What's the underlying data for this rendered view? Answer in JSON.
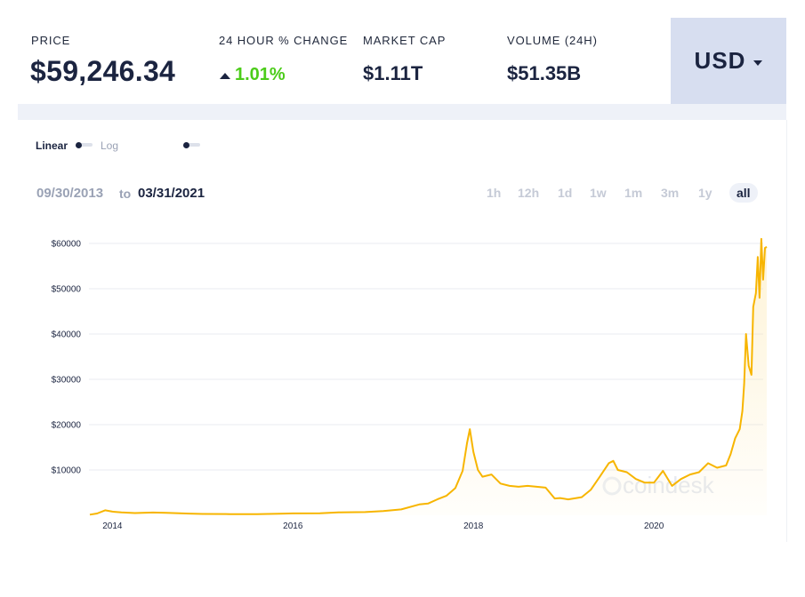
{
  "stats": {
    "price_label": "PRICE",
    "price_value": "$59,246.34",
    "change_label": "24 HOUR % CHANGE",
    "change_value": "1.01%",
    "market_cap_label": "MARKET CAP",
    "market_cap_value": "$1.11T",
    "volume_label": "VOLUME (24H)",
    "volume_value": "$51.35B"
  },
  "currency": {
    "label": "USD"
  },
  "scale": {
    "linear_label": "Linear",
    "log_label": "Log"
  },
  "date_range": {
    "from": "09/30/2013",
    "to_word": "to",
    "to": "03/31/2021"
  },
  "ranges": [
    "1h",
    "12h",
    "1d",
    "1w",
    "1m",
    "3m",
    "1y",
    "all"
  ],
  "active_range": "all",
  "watermark": "coindesk",
  "colors": {
    "line": "#f7b500",
    "positive": "#4ccc1a",
    "text": "#1b2440",
    "muted": "#9aa2b5",
    "currency_bg": "#d7def0"
  },
  "chart_data": {
    "type": "area",
    "xlim": [
      2013.75,
      2021.25
    ],
    "ylim": [
      0,
      62000
    ],
    "x_ticks": [
      2014,
      2016,
      2018,
      2020
    ],
    "x_tick_labels": [
      "2014",
      "2016",
      "2018",
      "2020"
    ],
    "y_ticks": [
      10000,
      20000,
      30000,
      40000,
      50000,
      60000
    ],
    "y_tick_labels": [
      "$10000",
      "$20000",
      "$30000",
      "$40000",
      "$50000",
      "$60000"
    ],
    "grid": true,
    "series": [
      {
        "x": [
          2013.75,
          2013.83,
          2013.92,
          2014.0,
          2014.1,
          2014.25,
          2014.45,
          2014.6,
          2014.85,
          2015.0,
          2015.3,
          2015.6,
          2015.85,
          2016.0,
          2016.3,
          2016.5,
          2016.8,
          2017.0,
          2017.2,
          2017.4,
          2017.5,
          2017.6,
          2017.7,
          2017.8,
          2017.88,
          2017.93,
          2017.96,
          2018.0,
          2018.05,
          2018.1,
          2018.2,
          2018.3,
          2018.4,
          2018.5,
          2018.6,
          2018.7,
          2018.8,
          2018.9,
          2018.96,
          2019.05,
          2019.2,
          2019.3,
          2019.4,
          2019.5,
          2019.55,
          2019.6,
          2019.7,
          2019.8,
          2019.9,
          2020.0,
          2020.1,
          2020.2,
          2020.3,
          2020.4,
          2020.5,
          2020.6,
          2020.7,
          2020.8,
          2020.85,
          2020.9,
          2020.95,
          2020.98,
          2021.0,
          2021.02,
          2021.05,
          2021.08,
          2021.1,
          2021.13,
          2021.15,
          2021.17,
          2021.19,
          2021.21,
          2021.23,
          2021.25
        ],
        "y": [
          130,
          400,
          1100,
          800,
          650,
          500,
          600,
          550,
          380,
          300,
          250,
          230,
          350,
          420,
          430,
          650,
          700,
          950,
          1300,
          2400,
          2600,
          3500,
          4300,
          6000,
          9800,
          16000,
          19000,
          14000,
          10000,
          8500,
          9000,
          7000,
          6500,
          6300,
          6500,
          6300,
          6100,
          3700,
          3800,
          3500,
          4000,
          5600,
          8500,
          11500,
          12000,
          10000,
          9500,
          8000,
          7200,
          7200,
          9800,
          6500,
          8000,
          9000,
          9500,
          11500,
          10500,
          11000,
          13500,
          17000,
          19000,
          23000,
          29000,
          40000,
          33000,
          31000,
          46000,
          49000,
          57000,
          48000,
          61000,
          52000,
          59000,
          59246
        ]
      }
    ]
  }
}
